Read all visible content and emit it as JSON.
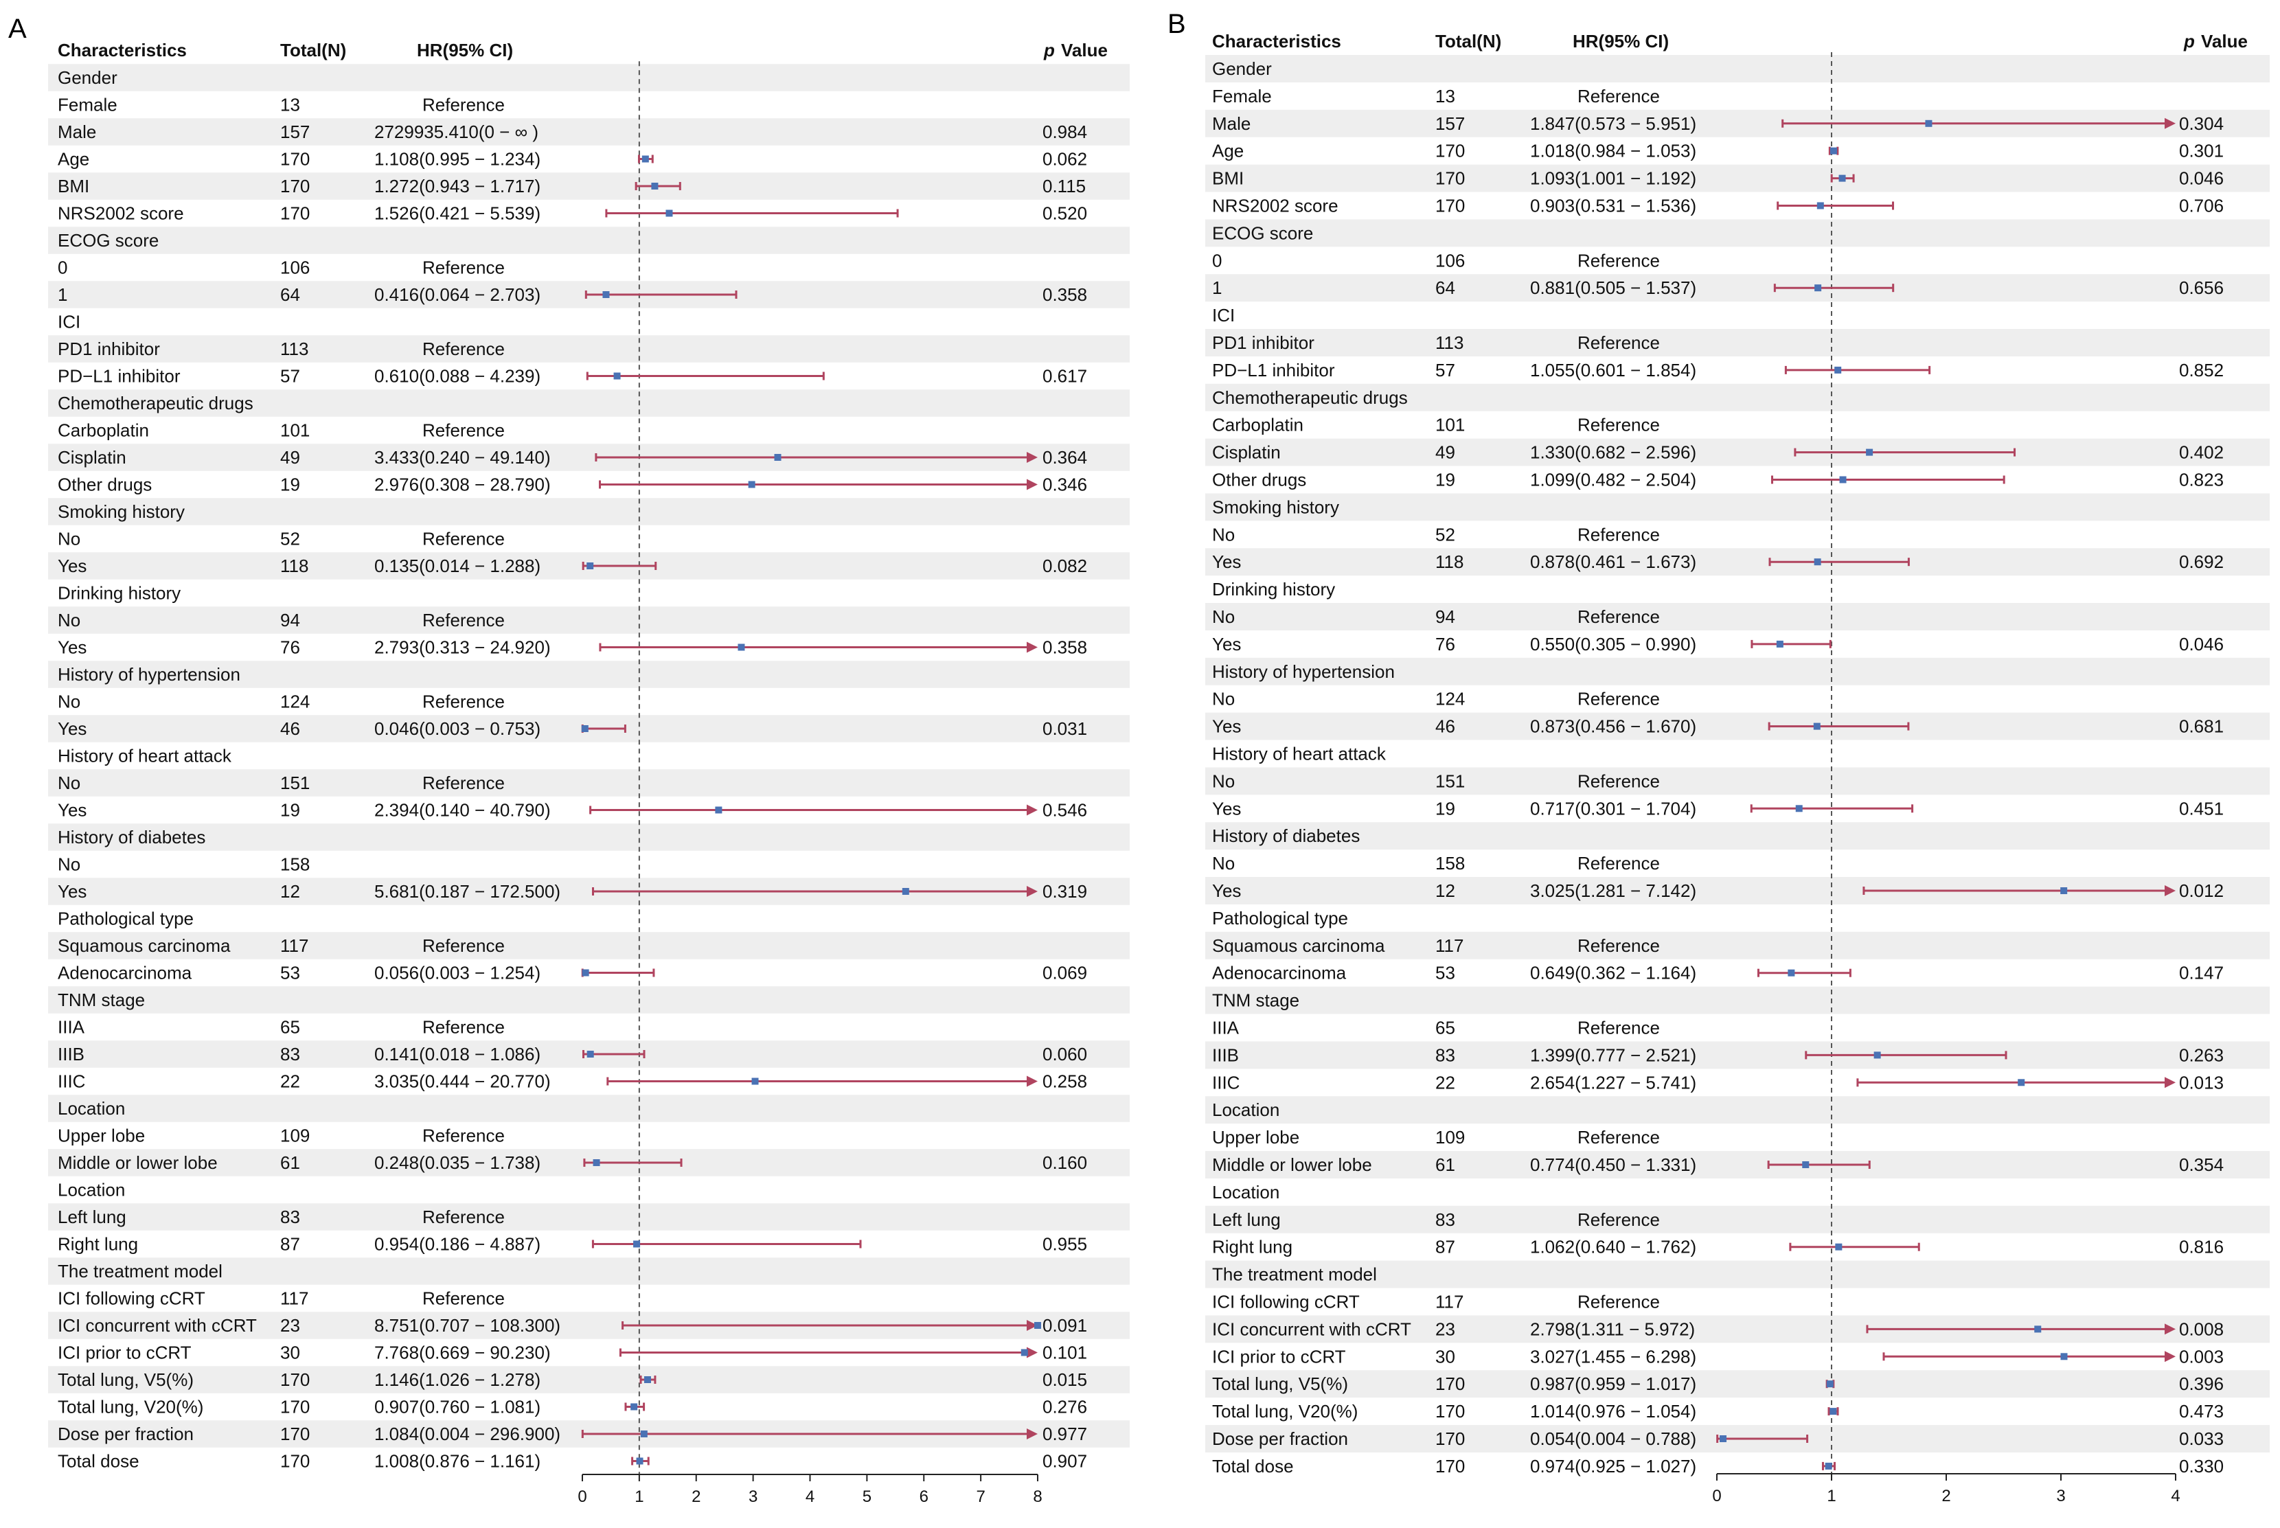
{
  "figure": {
    "panels": [
      "A",
      "B"
    ]
  },
  "chart_data": [
    {
      "type": "forest",
      "panel": "A",
      "columns": [
        "Characteristics",
        "Total(N)",
        "HR(95% CI)",
        "p",
        "Value"
      ],
      "x_ticks": [
        "0",
        "1",
        "2",
        "3",
        "4",
        "5",
        "6",
        "7",
        "8"
      ],
      "xlim": [
        0,
        8
      ],
      "reference_value": 1,
      "rows": [
        {
          "label": "Gender",
          "n": "",
          "hr_text": "",
          "p": "",
          "header": true
        },
        {
          "label": "Female",
          "n": "13",
          "hr_text": "Reference",
          "p": "",
          "ref": true
        },
        {
          "label": "Male",
          "n": "157",
          "hr_text": "2729935.410(0 − ∞ )",
          "p": "0.984"
        },
        {
          "label": "Age",
          "n": "170",
          "hr_text": "1.108(0.995 − 1.234)",
          "p": "0.062",
          "hr": 1.108,
          "lo": 0.995,
          "hi": 1.234
        },
        {
          "label": "BMI",
          "n": "170",
          "hr_text": "1.272(0.943 − 1.717)",
          "p": "0.115",
          "hr": 1.272,
          "lo": 0.943,
          "hi": 1.717
        },
        {
          "label": "NRS2002 score",
          "n": "170",
          "hr_text": "1.526(0.421 − 5.539)",
          "p": "0.520",
          "hr": 1.526,
          "lo": 0.421,
          "hi": 5.539
        },
        {
          "label": "ECOG score",
          "n": "",
          "hr_text": "",
          "p": "",
          "header": true
        },
        {
          "label": "0",
          "n": "106",
          "hr_text": "Reference",
          "p": "",
          "ref": true
        },
        {
          "label": "1",
          "n": "64",
          "hr_text": "0.416(0.064 − 2.703)",
          "p": "0.358",
          "hr": 0.416,
          "lo": 0.064,
          "hi": 2.703
        },
        {
          "label": "ICI",
          "n": "",
          "hr_text": "",
          "p": "",
          "header": true
        },
        {
          "label": "PD1 inhibitor",
          "n": "113",
          "hr_text": "Reference",
          "p": "",
          "ref": true
        },
        {
          "label": "PD−L1 inhibitor",
          "n": "57",
          "hr_text": "0.610(0.088 − 4.239)",
          "p": "0.617",
          "hr": 0.61,
          "lo": 0.088,
          "hi": 4.239
        },
        {
          "label": "Chemotherapeutic drugs",
          "n": "",
          "hr_text": "",
          "p": "",
          "header": true
        },
        {
          "label": "Carboplatin",
          "n": "101",
          "hr_text": "Reference",
          "p": "",
          "ref": true
        },
        {
          "label": "Cisplatin",
          "n": "49",
          "hr_text": "3.433(0.240 − 49.140)",
          "p": "0.364",
          "hr": 3.433,
          "lo": 0.24,
          "hi": 49.14
        },
        {
          "label": "Other drugs",
          "n": "19",
          "hr_text": "2.976(0.308 − 28.790)",
          "p": "0.346",
          "hr": 2.976,
          "lo": 0.308,
          "hi": 28.79
        },
        {
          "label": "Smoking history",
          "n": "",
          "hr_text": "",
          "p": "",
          "header": true
        },
        {
          "label": "No",
          "n": "52",
          "hr_text": "Reference",
          "p": "",
          "ref": true
        },
        {
          "label": "Yes",
          "n": "118",
          "hr_text": "0.135(0.014 − 1.288)",
          "p": "0.082",
          "hr": 0.135,
          "lo": 0.014,
          "hi": 1.288
        },
        {
          "label": "Drinking history",
          "n": "",
          "hr_text": "",
          "p": "",
          "header": true
        },
        {
          "label": "No",
          "n": "94",
          "hr_text": "Reference",
          "p": "",
          "ref": true
        },
        {
          "label": "Yes",
          "n": "76",
          "hr_text": "2.793(0.313 − 24.920)",
          "p": "0.358",
          "hr": 2.793,
          "lo": 0.313,
          "hi": 24.92
        },
        {
          "label": "History of hypertension",
          "n": "",
          "hr_text": "",
          "p": "",
          "header": true
        },
        {
          "label": "No",
          "n": "124",
          "hr_text": "Reference",
          "p": "",
          "ref": true
        },
        {
          "label": "Yes",
          "n": "46",
          "hr_text": "0.046(0.003 − 0.753)",
          "p": "0.031",
          "hr": 0.046,
          "lo": 0.003,
          "hi": 0.753
        },
        {
          "label": "History of heart attack",
          "n": "",
          "hr_text": "",
          "p": "",
          "header": true
        },
        {
          "label": "No",
          "n": "151",
          "hr_text": "Reference",
          "p": "",
          "ref": true
        },
        {
          "label": "Yes",
          "n": "19",
          "hr_text": "2.394(0.140 − 40.790)",
          "p": "0.546",
          "hr": 2.394,
          "lo": 0.14,
          "hi": 40.79
        },
        {
          "label": "History of diabetes",
          "n": "",
          "hr_text": "",
          "p": "",
          "header": true
        },
        {
          "label": "No",
          "n": "158",
          "hr_text": "",
          "p": "",
          "ref": true
        },
        {
          "label": "Yes",
          "n": "12",
          "hr_text": "5.681(0.187 − 172.500)",
          "p": "0.319",
          "hr": 5.681,
          "lo": 0.187,
          "hi": 172.5
        },
        {
          "label": "Pathological type",
          "n": "",
          "hr_text": "",
          "p": "",
          "header": true
        },
        {
          "label": "Squamous carcinoma",
          "n": "117",
          "hr_text": "Reference",
          "p": "",
          "ref": true
        },
        {
          "label": "Adenocarcinoma",
          "n": "53",
          "hr_text": "0.056(0.003 − 1.254)",
          "p": "0.069",
          "hr": 0.056,
          "lo": 0.003,
          "hi": 1.254
        },
        {
          "label": "TNM stage",
          "n": "",
          "hr_text": "",
          "p": "",
          "header": true
        },
        {
          "label": "IIIA",
          "n": "65",
          "hr_text": "Reference",
          "p": "",
          "ref": true
        },
        {
          "label": "IIIB",
          "n": "83",
          "hr_text": "0.141(0.018 − 1.086)",
          "p": "0.060",
          "hr": 0.141,
          "lo": 0.018,
          "hi": 1.086
        },
        {
          "label": "IIIC",
          "n": "22",
          "hr_text": "3.035(0.444 − 20.770)",
          "p": "0.258",
          "hr": 3.035,
          "lo": 0.444,
          "hi": 20.77
        },
        {
          "label": "Location",
          "n": "",
          "hr_text": "",
          "p": "",
          "header": true
        },
        {
          "label": "Upper lobe",
          "n": "109",
          "hr_text": "Reference",
          "p": "",
          "ref": true
        },
        {
          "label": "Middle or lower lobe",
          "n": "61",
          "hr_text": "0.248(0.035 − 1.738)",
          "p": "0.160",
          "hr": 0.248,
          "lo": 0.035,
          "hi": 1.738
        },
        {
          "label": "Location",
          "n": "",
          "hr_text": "",
          "p": "",
          "header": true
        },
        {
          "label": "Left lung",
          "n": "83",
          "hr_text": "Reference",
          "p": "",
          "ref": true
        },
        {
          "label": "Right lung",
          "n": "87",
          "hr_text": "0.954(0.186 − 4.887)",
          "p": "0.955",
          "hr": 0.954,
          "lo": 0.186,
          "hi": 4.887
        },
        {
          "label": "The treatment model",
          "n": "",
          "hr_text": "",
          "p": "",
          "header": true
        },
        {
          "label": "ICI following cCRT",
          "n": "117",
          "hr_text": "Reference",
          "p": "",
          "ref": true
        },
        {
          "label": "ICI concurrent with cCRT",
          "n": "23",
          "hr_text": "8.751(0.707 − 108.300)",
          "p": "0.091",
          "hr": 8.751,
          "lo": 0.707,
          "hi": 108.3
        },
        {
          "label": "ICI prior to cCRT",
          "n": "30",
          "hr_text": "7.768(0.669 − 90.230)",
          "p": "0.101",
          "hr": 7.768,
          "lo": 0.669,
          "hi": 90.23
        },
        {
          "label": "Total lung, V5(%)",
          "n": "170",
          "hr_text": "1.146(1.026 − 1.278)",
          "p": "0.015",
          "hr": 1.146,
          "lo": 1.026,
          "hi": 1.278
        },
        {
          "label": "Total lung, V20(%)",
          "n": "170",
          "hr_text": "0.907(0.760 − 1.081)",
          "p": "0.276",
          "hr": 0.907,
          "lo": 0.76,
          "hi": 1.081
        },
        {
          "label": "Dose per fraction",
          "n": "170",
          "hr_text": "1.084(0.004 − 296.900)",
          "p": "0.977",
          "hr": 1.084,
          "lo": 0.004,
          "hi": 296.9
        },
        {
          "label": "Total dose",
          "n": "170",
          "hr_text": "1.008(0.876 − 1.161)",
          "p": "0.907",
          "hr": 1.008,
          "lo": 0.876,
          "hi": 1.161
        }
      ]
    },
    {
      "type": "forest",
      "panel": "B",
      "columns": [
        "Characteristics",
        "Total(N)",
        "HR(95% CI)",
        "p",
        "Value"
      ],
      "x_ticks": [
        "0",
        "1",
        "2",
        "3",
        "4"
      ],
      "xlim": [
        0,
        4
      ],
      "reference_value": 1,
      "rows": [
        {
          "label": "Gender",
          "n": "",
          "hr_text": "",
          "p": "",
          "header": true
        },
        {
          "label": "Female",
          "n": "13",
          "hr_text": "Reference",
          "p": "",
          "ref": true
        },
        {
          "label": "Male",
          "n": "157",
          "hr_text": "1.847(0.573 − 5.951)",
          "p": "0.304",
          "hr": 1.847,
          "lo": 0.573,
          "hi": 5.951
        },
        {
          "label": "Age",
          "n": "170",
          "hr_text": "1.018(0.984 − 1.053)",
          "p": "0.301",
          "hr": 1.018,
          "lo": 0.984,
          "hi": 1.053
        },
        {
          "label": "BMI",
          "n": "170",
          "hr_text": "1.093(1.001 − 1.192)",
          "p": "0.046",
          "hr": 1.093,
          "lo": 1.001,
          "hi": 1.192
        },
        {
          "label": "NRS2002 score",
          "n": "170",
          "hr_text": "0.903(0.531 − 1.536)",
          "p": "0.706",
          "hr": 0.903,
          "lo": 0.531,
          "hi": 1.536
        },
        {
          "label": "ECOG score",
          "n": "",
          "hr_text": "",
          "p": "",
          "header": true
        },
        {
          "label": "0",
          "n": "106",
          "hr_text": "Reference",
          "p": "",
          "ref": true
        },
        {
          "label": "1",
          "n": "64",
          "hr_text": "0.881(0.505 − 1.537)",
          "p": "0.656",
          "hr": 0.881,
          "lo": 0.505,
          "hi": 1.537
        },
        {
          "label": "ICI",
          "n": "",
          "hr_text": "",
          "p": "",
          "header": true
        },
        {
          "label": "PD1 inhibitor",
          "n": "113",
          "hr_text": "Reference",
          "p": "",
          "ref": true
        },
        {
          "label": "PD−L1 inhibitor",
          "n": "57",
          "hr_text": "1.055(0.601 − 1.854)",
          "p": "0.852",
          "hr": 1.055,
          "lo": 0.601,
          "hi": 1.854
        },
        {
          "label": "Chemotherapeutic drugs",
          "n": "",
          "hr_text": "",
          "p": "",
          "header": true
        },
        {
          "label": "Carboplatin",
          "n": "101",
          "hr_text": "Reference",
          "p": "",
          "ref": true
        },
        {
          "label": "Cisplatin",
          "n": "49",
          "hr_text": "1.330(0.682 − 2.596)",
          "p": "0.402",
          "hr": 1.33,
          "lo": 0.682,
          "hi": 2.596
        },
        {
          "label": "Other drugs",
          "n": "19",
          "hr_text": "1.099(0.482 − 2.504)",
          "p": "0.823",
          "hr": 1.099,
          "lo": 0.482,
          "hi": 2.504
        },
        {
          "label": "Smoking history",
          "n": "",
          "hr_text": "",
          "p": "",
          "header": true
        },
        {
          "label": "No",
          "n": "52",
          "hr_text": "Reference",
          "p": "",
          "ref": true
        },
        {
          "label": "Yes",
          "n": "118",
          "hr_text": "0.878(0.461 − 1.673)",
          "p": "0.692",
          "hr": 0.878,
          "lo": 0.461,
          "hi": 1.673
        },
        {
          "label": "Drinking history",
          "n": "",
          "hr_text": "",
          "p": "",
          "header": true
        },
        {
          "label": "No",
          "n": "94",
          "hr_text": "Reference",
          "p": "",
          "ref": true
        },
        {
          "label": "Yes",
          "n": "76",
          "hr_text": "0.550(0.305 − 0.990)",
          "p": "0.046",
          "hr": 0.55,
          "lo": 0.305,
          "hi": 0.99
        },
        {
          "label": "History of hypertension",
          "n": "",
          "hr_text": "",
          "p": "",
          "header": true
        },
        {
          "label": "No",
          "n": "124",
          "hr_text": "Reference",
          "p": "",
          "ref": true
        },
        {
          "label": "Yes",
          "n": "46",
          "hr_text": "0.873(0.456 − 1.670)",
          "p": "0.681",
          "hr": 0.873,
          "lo": 0.456,
          "hi": 1.67
        },
        {
          "label": "History of heart attack",
          "n": "",
          "hr_text": "",
          "p": "",
          "header": true
        },
        {
          "label": "No",
          "n": "151",
          "hr_text": "Reference",
          "p": "",
          "ref": true
        },
        {
          "label": "Yes",
          "n": "19",
          "hr_text": "0.717(0.301 − 1.704)",
          "p": "0.451",
          "hr": 0.717,
          "lo": 0.301,
          "hi": 1.704
        },
        {
          "label": "History of diabetes",
          "n": "",
          "hr_text": "",
          "p": "",
          "header": true
        },
        {
          "label": "No",
          "n": "158",
          "hr_text": "Reference",
          "p": "",
          "ref": true
        },
        {
          "label": "Yes",
          "n": "12",
          "hr_text": "3.025(1.281 − 7.142)",
          "p": "0.012",
          "hr": 3.025,
          "lo": 1.281,
          "hi": 7.142
        },
        {
          "label": "Pathological type",
          "n": "",
          "hr_text": "",
          "p": "",
          "header": true
        },
        {
          "label": "Squamous carcinoma",
          "n": "117",
          "hr_text": "Reference",
          "p": "",
          "ref": true
        },
        {
          "label": "Adenocarcinoma",
          "n": "53",
          "hr_text": "0.649(0.362 − 1.164)",
          "p": "0.147",
          "hr": 0.649,
          "lo": 0.362,
          "hi": 1.164
        },
        {
          "label": "TNM stage",
          "n": "",
          "hr_text": "",
          "p": "",
          "header": true
        },
        {
          "label": "IIIA",
          "n": "65",
          "hr_text": "Reference",
          "p": "",
          "ref": true
        },
        {
          "label": "IIIB",
          "n": "83",
          "hr_text": "1.399(0.777 − 2.521)",
          "p": "0.263",
          "hr": 1.399,
          "lo": 0.777,
          "hi": 2.521
        },
        {
          "label": "IIIC",
          "n": "22",
          "hr_text": "2.654(1.227 − 5.741)",
          "p": "0.013",
          "hr": 2.654,
          "lo": 1.227,
          "hi": 5.741
        },
        {
          "label": "Location",
          "n": "",
          "hr_text": "",
          "p": "",
          "header": true
        },
        {
          "label": "Upper lobe",
          "n": "109",
          "hr_text": "Reference",
          "p": "",
          "ref": true
        },
        {
          "label": "Middle or lower lobe",
          "n": "61",
          "hr_text": "0.774(0.450 − 1.331)",
          "p": "0.354",
          "hr": 0.774,
          "lo": 0.45,
          "hi": 1.331
        },
        {
          "label": "Location",
          "n": "",
          "hr_text": "",
          "p": "",
          "header": true
        },
        {
          "label": "Left lung",
          "n": "83",
          "hr_text": "Reference",
          "p": "",
          "ref": true
        },
        {
          "label": "Right lung",
          "n": "87",
          "hr_text": "1.062(0.640 − 1.762)",
          "p": "0.816",
          "hr": 1.062,
          "lo": 0.64,
          "hi": 1.762
        },
        {
          "label": "The treatment model",
          "n": "",
          "hr_text": "",
          "p": "",
          "header": true
        },
        {
          "label": "ICI following cCRT",
          "n": "117",
          "hr_text": "Reference",
          "p": "",
          "ref": true
        },
        {
          "label": "ICI concurrent with cCRT",
          "n": "23",
          "hr_text": "2.798(1.311 − 5.972)",
          "p": "0.008",
          "hr": 2.798,
          "lo": 1.311,
          "hi": 5.972
        },
        {
          "label": "ICI prior to cCRT",
          "n": "30",
          "hr_text": "3.027(1.455 − 6.298)",
          "p": "0.003",
          "hr": 3.027,
          "lo": 1.455,
          "hi": 6.298
        },
        {
          "label": "Total lung, V5(%)",
          "n": "170",
          "hr_text": "0.987(0.959 − 1.017)",
          "p": "0.396",
          "hr": 0.987,
          "lo": 0.959,
          "hi": 1.017
        },
        {
          "label": "Total lung, V20(%)",
          "n": "170",
          "hr_text": "1.014(0.976 − 1.054)",
          "p": "0.473",
          "hr": 1.014,
          "lo": 0.976,
          "hi": 1.054
        },
        {
          "label": "Dose per fraction",
          "n": "170",
          "hr_text": "0.054(0.004 − 0.788)",
          "p": "0.033",
          "hr": 0.054,
          "lo": 0.004,
          "hi": 0.788
        },
        {
          "label": "Total dose",
          "n": "170",
          "hr_text": "0.974(0.925 − 1.027)",
          "p": "0.330",
          "hr": 0.974,
          "lo": 0.925,
          "hi": 1.027
        }
      ]
    }
  ]
}
